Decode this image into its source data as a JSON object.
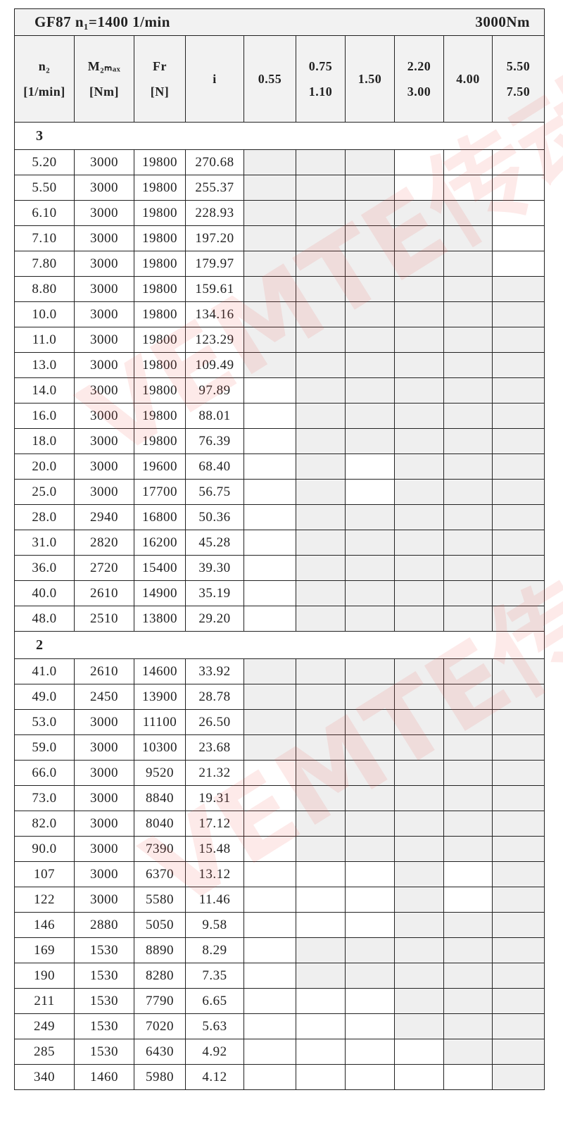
{
  "title": {
    "left": "GF87 n₁=1400 1/min",
    "right": "3000Nm"
  },
  "headers": [
    [
      "n₂",
      "[1/min]"
    ],
    [
      "M₂ₘₐₓ",
      "[Nm]"
    ],
    [
      "Fr",
      "[N]"
    ],
    [
      "i"
    ],
    [
      "0.55"
    ],
    [
      "0.75",
      "1.10"
    ],
    [
      "1.50"
    ],
    [
      "2.20",
      "3.00"
    ],
    [
      "4.00"
    ],
    [
      "5.50",
      "7.50"
    ]
  ],
  "sections": [
    {
      "label": "3",
      "rows": [
        {
          "cells": [
            "5.20",
            "3000",
            "19800",
            "270.68"
          ],
          "shaded": [
            true,
            true,
            true,
            false,
            false,
            false
          ]
        },
        {
          "cells": [
            "5.50",
            "3000",
            "19800",
            "255.37"
          ],
          "shaded": [
            true,
            true,
            true,
            false,
            false,
            false
          ]
        },
        {
          "cells": [
            "6.10",
            "3000",
            "19800",
            "228.93"
          ],
          "shaded": [
            true,
            true,
            true,
            true,
            true,
            false
          ]
        },
        {
          "cells": [
            "7.10",
            "3000",
            "19800",
            "197.20"
          ],
          "shaded": [
            true,
            true,
            true,
            true,
            true,
            false
          ]
        },
        {
          "cells": [
            "7.80",
            "3000",
            "19800",
            "179.97"
          ],
          "shaded": [
            true,
            true,
            true,
            true,
            true,
            false
          ]
        },
        {
          "cells": [
            "8.80",
            "3000",
            "19800",
            "159.61"
          ],
          "shaded": [
            true,
            true,
            true,
            true,
            true,
            true
          ]
        },
        {
          "cells": [
            "10.0",
            "3000",
            "19800",
            "134.16"
          ],
          "shaded": [
            true,
            true,
            true,
            true,
            true,
            true
          ]
        },
        {
          "cells": [
            "11.0",
            "3000",
            "19800",
            "123.29"
          ],
          "shaded": [
            true,
            true,
            true,
            true,
            true,
            true
          ]
        },
        {
          "cells": [
            "13.0",
            "3000",
            "19800",
            "109.49"
          ],
          "shaded": [
            true,
            true,
            true,
            true,
            true,
            true
          ]
        },
        {
          "cells": [
            "14.0",
            "3000",
            "19800",
            "97.89"
          ],
          "shaded": [
            false,
            true,
            true,
            true,
            true,
            true
          ]
        },
        {
          "cells": [
            "16.0",
            "3000",
            "19800",
            "88.01"
          ],
          "shaded": [
            false,
            true,
            true,
            true,
            true,
            true
          ]
        },
        {
          "cells": [
            "18.0",
            "3000",
            "19800",
            "76.39"
          ],
          "shaded": [
            false,
            true,
            true,
            true,
            true,
            true
          ]
        },
        {
          "cells": [
            "20.0",
            "3000",
            "19600",
            "68.40"
          ],
          "shaded": [
            false,
            true,
            false,
            true,
            true,
            true
          ]
        },
        {
          "cells": [
            "25.0",
            "3000",
            "17700",
            "56.75"
          ],
          "shaded": [
            false,
            true,
            false,
            true,
            true,
            true
          ]
        },
        {
          "cells": [
            "28.0",
            "2940",
            "16800",
            "50.36"
          ],
          "shaded": [
            false,
            true,
            true,
            true,
            true,
            true
          ]
        },
        {
          "cells": [
            "31.0",
            "2820",
            "16200",
            "45.28"
          ],
          "shaded": [
            false,
            true,
            true,
            true,
            true,
            true
          ]
        },
        {
          "cells": [
            "36.0",
            "2720",
            "15400",
            "39.30"
          ],
          "shaded": [
            false,
            true,
            true,
            true,
            true,
            true
          ]
        },
        {
          "cells": [
            "40.0",
            "2610",
            "14900",
            "35.19"
          ],
          "shaded": [
            false,
            true,
            true,
            true,
            true,
            true
          ]
        },
        {
          "cells": [
            "48.0",
            "2510",
            "13800",
            "29.20"
          ],
          "shaded": [
            false,
            true,
            true,
            true,
            true,
            true
          ]
        }
      ]
    },
    {
      "label": "2",
      "rows": [
        {
          "cells": [
            "41.0",
            "2610",
            "14600",
            "33.92"
          ],
          "shaded": [
            true,
            true,
            true,
            true,
            true,
            true
          ]
        },
        {
          "cells": [
            "49.0",
            "2450",
            "13900",
            "28.78"
          ],
          "shaded": [
            true,
            true,
            true,
            true,
            true,
            true
          ]
        },
        {
          "cells": [
            "53.0",
            "3000",
            "11100",
            "26.50"
          ],
          "shaded": [
            true,
            true,
            true,
            true,
            true,
            true
          ]
        },
        {
          "cells": [
            "59.0",
            "3000",
            "10300",
            "23.68"
          ],
          "shaded": [
            true,
            true,
            true,
            true,
            true,
            true
          ]
        },
        {
          "cells": [
            "66.0",
            "3000",
            "9520",
            "21.32"
          ],
          "shaded": [
            false,
            true,
            true,
            true,
            true,
            true
          ]
        },
        {
          "cells": [
            "73.0",
            "3000",
            "8840",
            "19.31"
          ],
          "shaded": [
            false,
            true,
            true,
            true,
            true,
            true
          ]
        },
        {
          "cells": [
            "82.0",
            "3000",
            "8040",
            "17.12"
          ],
          "shaded": [
            false,
            true,
            true,
            true,
            true,
            true
          ]
        },
        {
          "cells": [
            "90.0",
            "3000",
            "7390",
            "15.48"
          ],
          "shaded": [
            false,
            true,
            true,
            true,
            true,
            true
          ]
        },
        {
          "cells": [
            "107",
            "3000",
            "6370",
            "13.12"
          ],
          "shaded": [
            false,
            false,
            false,
            true,
            false,
            true
          ]
        },
        {
          "cells": [
            "122",
            "3000",
            "5580",
            "11.46"
          ],
          "shaded": [
            false,
            false,
            false,
            true,
            false,
            true
          ]
        },
        {
          "cells": [
            "146",
            "2880",
            "5050",
            "9.58"
          ],
          "shaded": [
            false,
            false,
            false,
            true,
            true,
            true
          ]
        },
        {
          "cells": [
            "169",
            "1530",
            "8890",
            "8.29"
          ],
          "shaded": [
            false,
            true,
            true,
            true,
            true,
            true
          ]
        },
        {
          "cells": [
            "190",
            "1530",
            "8280",
            "7.35"
          ],
          "shaded": [
            false,
            true,
            true,
            true,
            true,
            true
          ]
        },
        {
          "cells": [
            "211",
            "1530",
            "7790",
            "6.65"
          ],
          "shaded": [
            false,
            false,
            false,
            true,
            true,
            true
          ]
        },
        {
          "cells": [
            "249",
            "1530",
            "7020",
            "5.63"
          ],
          "shaded": [
            false,
            false,
            false,
            true,
            true,
            true
          ]
        },
        {
          "cells": [
            "285",
            "1530",
            "6430",
            "4.92"
          ],
          "shaded": [
            false,
            false,
            false,
            false,
            true,
            true
          ]
        },
        {
          "cells": [
            "340",
            "1460",
            "5980",
            "4.12"
          ],
          "shaded": [
            false,
            false,
            false,
            false,
            false,
            true
          ]
        }
      ]
    }
  ],
  "watermark": "VEMTE传动"
}
